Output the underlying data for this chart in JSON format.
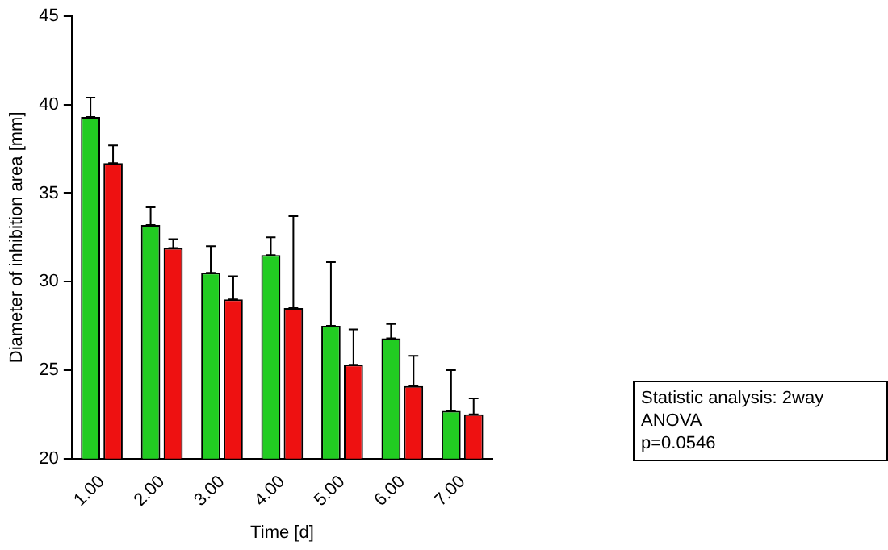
{
  "chart_data": {
    "type": "bar",
    "xlabel": "Time [d]",
    "ylabel": "Diameter of inhibition area [mm]",
    "categories": [
      "1.00",
      "2.00",
      "3.00",
      "4.00",
      "5.00",
      "6.00",
      "7.00"
    ],
    "series": [
      {
        "color": "#22cc22",
        "values": [
          39.3,
          33.2,
          30.5,
          31.5,
          27.5,
          26.8,
          22.7
        ],
        "errors": [
          [
            39.3,
            40.4
          ],
          [
            33.2,
            34.2
          ],
          [
            30.5,
            32.0
          ],
          [
            31.5,
            32.5
          ],
          [
            27.5,
            31.1
          ],
          [
            26.8,
            27.6
          ],
          [
            22.7,
            25.0
          ]
        ]
      },
      {
        "color": "#ee1111",
        "values": [
          36.7,
          31.9,
          29.0,
          28.5,
          25.3,
          24.1,
          22.5
        ],
        "errors": [
          [
            36.7,
            37.7
          ],
          [
            31.9,
            32.4
          ],
          [
            29.0,
            30.3
          ],
          [
            28.5,
            33.7
          ],
          [
            25.3,
            27.3
          ],
          [
            24.1,
            25.8
          ],
          [
            22.5,
            23.4
          ]
        ]
      }
    ],
    "ylim": [
      20,
      45
    ],
    "yticks": [
      20,
      25,
      30,
      35,
      40,
      45
    ],
    "grid": false,
    "legend": false,
    "annotations": [
      "Statistic analysis: 2way ANOVA\np=0.0546"
    ]
  }
}
